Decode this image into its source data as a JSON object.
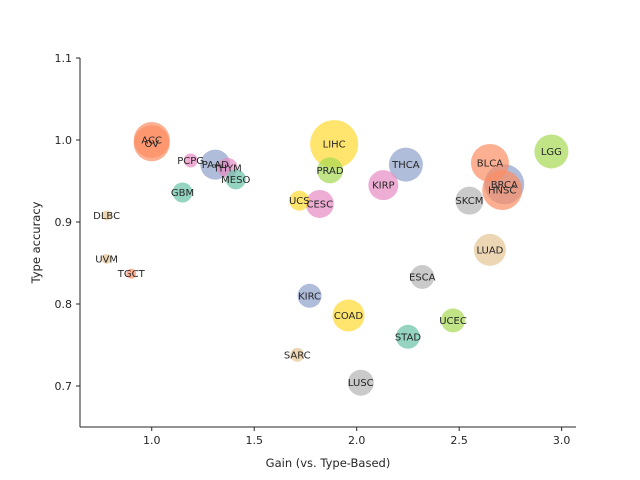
{
  "chart_data": {
    "type": "scatter",
    "title": "",
    "xlabel": "Gain (vs. Type-Based)",
    "ylabel": "Type accuracy",
    "xlim": [
      0.65,
      3.07
    ],
    "ylim": [
      0.65,
      1.1
    ],
    "xticks": [
      "1.0",
      "1.5",
      "2.0",
      "2.5",
      "3.0"
    ],
    "yticks": [
      "0.7",
      "0.8",
      "0.9",
      "1.0",
      "1.1"
    ],
    "xtick_values": [
      1.0,
      1.5,
      2.0,
      2.5,
      3.0
    ],
    "ytick_values": [
      0.7,
      0.8,
      0.9,
      1.0,
      1.1
    ],
    "grid": false,
    "legend": "none",
    "points": [
      {
        "label": "ACC",
        "x": 1.0,
        "y": 1.0,
        "size": 18,
        "color": "#fc8d62"
      },
      {
        "label": "OV",
        "x": 1.0,
        "y": 0.996,
        "size": 18,
        "color": "#fc8d62"
      },
      {
        "label": "PCPG",
        "x": 1.19,
        "y": 0.975,
        "size": 7,
        "color": "#e78ac3"
      },
      {
        "label": "PAAD",
        "x": 1.31,
        "y": 0.97,
        "size": 15,
        "color": "#8da0cb"
      },
      {
        "label": "THYM",
        "x": 1.37,
        "y": 0.966,
        "size": 10,
        "color": "#e78ac3"
      },
      {
        "label": "MESO",
        "x": 1.41,
        "y": 0.952,
        "size": 10,
        "color": "#66c2a5"
      },
      {
        "label": "GBM",
        "x": 1.15,
        "y": 0.936,
        "size": 10,
        "color": "#66c2a5"
      },
      {
        "label": "DLBC",
        "x": 0.78,
        "y": 0.908,
        "size": 5,
        "color": "#e5c494"
      },
      {
        "label": "UVM",
        "x": 0.78,
        "y": 0.855,
        "size": 5,
        "color": "#e5c494"
      },
      {
        "label": "TGCT",
        "x": 0.9,
        "y": 0.837,
        "size": 5,
        "color": "#fc8d62"
      },
      {
        "label": "LIHC",
        "x": 1.89,
        "y": 0.995,
        "size": 24,
        "color": "#ffd92f"
      },
      {
        "label": "PRAD",
        "x": 1.87,
        "y": 0.963,
        "size": 13,
        "color": "#a6d854"
      },
      {
        "label": "UCS",
        "x": 1.72,
        "y": 0.926,
        "size": 10,
        "color": "#ffd92f"
      },
      {
        "label": "CESC",
        "x": 1.82,
        "y": 0.922,
        "size": 14,
        "color": "#e78ac3"
      },
      {
        "label": "THCA",
        "x": 2.24,
        "y": 0.97,
        "size": 17,
        "color": "#8da0cb"
      },
      {
        "label": "KIRP",
        "x": 2.13,
        "y": 0.945,
        "size": 15,
        "color": "#e78ac3"
      },
      {
        "label": "KIRC",
        "x": 1.77,
        "y": 0.81,
        "size": 12,
        "color": "#8da0cb"
      },
      {
        "label": "COAD",
        "x": 1.96,
        "y": 0.786,
        "size": 16,
        "color": "#ffd92f"
      },
      {
        "label": "SARC",
        "x": 1.71,
        "y": 0.738,
        "size": 7,
        "color": "#e5c494"
      },
      {
        "label": "LUSC",
        "x": 2.02,
        "y": 0.704,
        "size": 13,
        "color": "#b3b3b3"
      },
      {
        "label": "ESCA",
        "x": 2.32,
        "y": 0.833,
        "size": 12,
        "color": "#b3b3b3"
      },
      {
        "label": "STAD",
        "x": 2.25,
        "y": 0.76,
        "size": 12,
        "color": "#66c2a5"
      },
      {
        "label": "UCEC",
        "x": 2.47,
        "y": 0.78,
        "size": 12,
        "color": "#a6d854"
      },
      {
        "label": "BLCA",
        "x": 2.65,
        "y": 0.972,
        "size": 19,
        "color": "#fc8d62"
      },
      {
        "label": "BRCA",
        "x": 2.72,
        "y": 0.946,
        "size": 20,
        "color": "#8da0cb"
      },
      {
        "label": "HNSC",
        "x": 2.71,
        "y": 0.939,
        "size": 20,
        "color": "#fc8d62"
      },
      {
        "label": "SKCM",
        "x": 2.55,
        "y": 0.926,
        "size": 14,
        "color": "#b3b3b3"
      },
      {
        "label": "LUAD",
        "x": 2.65,
        "y": 0.866,
        "size": 16,
        "color": "#e5c494"
      },
      {
        "label": "LGG",
        "x": 2.95,
        "y": 0.986,
        "size": 17,
        "color": "#a6d854"
      }
    ]
  }
}
